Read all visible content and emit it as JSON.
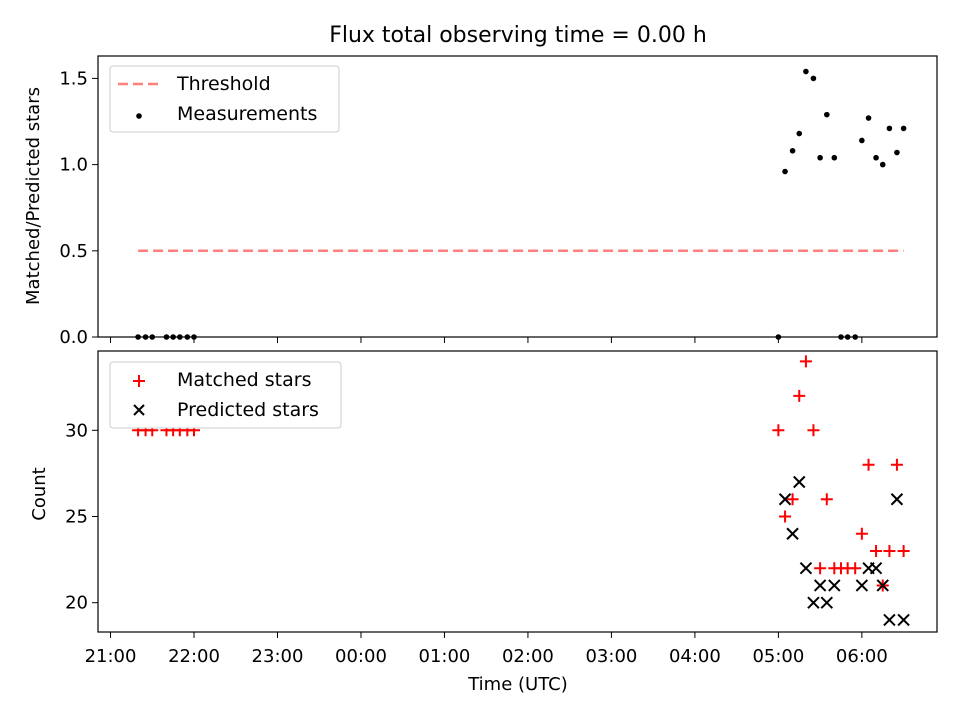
{
  "chart_data": [
    {
      "type": "scatter",
      "title": "Flux total observing time = 0.00 h",
      "xlabel": "",
      "ylabel": "Matched/Predicted stars",
      "xlim": [
        -0.15,
        9.9
      ],
      "ylim": [
        0.0,
        1.63
      ],
      "xticks": [
        0,
        1,
        2,
        3,
        4,
        5,
        6,
        7,
        8,
        9
      ],
      "yticks": [
        0.0,
        0.5,
        1.0,
        1.5
      ],
      "ytick_labels": [
        "0.0",
        "0.5",
        "1.0",
        "1.5"
      ],
      "legend": {
        "placement": "top-left",
        "entries": [
          "Threshold",
          "Measurements"
        ]
      },
      "series": [
        {
          "name": "Threshold",
          "kind": "dashed-line",
          "color": "#ff7f7f",
          "x": [
            0.33,
            9.5
          ],
          "y": [
            0.5,
            0.5
          ]
        },
        {
          "name": "Measurements",
          "kind": "dot",
          "color": "#000000",
          "x": [
            0.33,
            0.42,
            0.5,
            0.67,
            0.75,
            0.83,
            0.92,
            1.0,
            8.0,
            8.08,
            8.17,
            8.25,
            8.33,
            8.42,
            8.5,
            8.58,
            8.67,
            8.75,
            8.83,
            8.92,
            9.0,
            9.08,
            9.17,
            9.25,
            9.33,
            9.42,
            9.5
          ],
          "y": [
            0,
            0,
            0,
            0,
            0,
            0,
            0,
            0,
            0,
            0.96,
            1.08,
            1.18,
            1.54,
            1.5,
            1.04,
            1.29,
            1.04,
            0,
            0,
            0,
            1.14,
            1.27,
            1.04,
            1.0,
            1.21,
            1.07,
            1.21
          ]
        }
      ]
    },
    {
      "type": "scatter",
      "title": "",
      "xlabel": "Time (UTC)",
      "ylabel": "Count",
      "xlim": [
        -0.15,
        9.9
      ],
      "ylim": [
        18.3,
        34.6
      ],
      "xticks": [
        0,
        1,
        2,
        3,
        4,
        5,
        6,
        7,
        8,
        9
      ],
      "xtick_labels": [
        "21:00",
        "22:00",
        "23:00",
        "00:00",
        "01:00",
        "02:00",
        "03:00",
        "04:00",
        "05:00",
        "06:00"
      ],
      "yticks": [
        20,
        25,
        30
      ],
      "ytick_labels": [
        "20",
        "25",
        "30"
      ],
      "legend": {
        "placement": "top-left",
        "entries": [
          "Matched stars",
          "Predicted stars"
        ]
      },
      "series": [
        {
          "name": "Matched stars",
          "kind": "plus",
          "color": "#ff0000",
          "x": [
            0.33,
            0.42,
            0.5,
            0.67,
            0.75,
            0.83,
            0.92,
            1.0,
            8.0,
            8.08,
            8.17,
            8.25,
            8.33,
            8.42,
            8.5,
            8.58,
            8.67,
            8.75,
            8.83,
            8.92,
            9.0,
            9.08,
            9.17,
            9.25,
            9.33,
            9.42,
            9.5
          ],
          "y": [
            30,
            30,
            30,
            30,
            30,
            30,
            30,
            30,
            30,
            25,
            26,
            32,
            34,
            30,
            22,
            26,
            22,
            22,
            22,
            22,
            24,
            28,
            23,
            21,
            23,
            28,
            23
          ]
        },
        {
          "name": "Predicted stars",
          "kind": "x",
          "color": "#000000",
          "x": [
            8.08,
            8.17,
            8.25,
            8.33,
            8.42,
            8.5,
            8.58,
            8.67,
            9.0,
            9.08,
            9.17,
            9.25,
            9.33,
            9.42,
            9.5
          ],
          "y": [
            26,
            24,
            27,
            22,
            20,
            21,
            20,
            21,
            21,
            22,
            22,
            21,
            19,
            26,
            19
          ]
        }
      ]
    }
  ]
}
